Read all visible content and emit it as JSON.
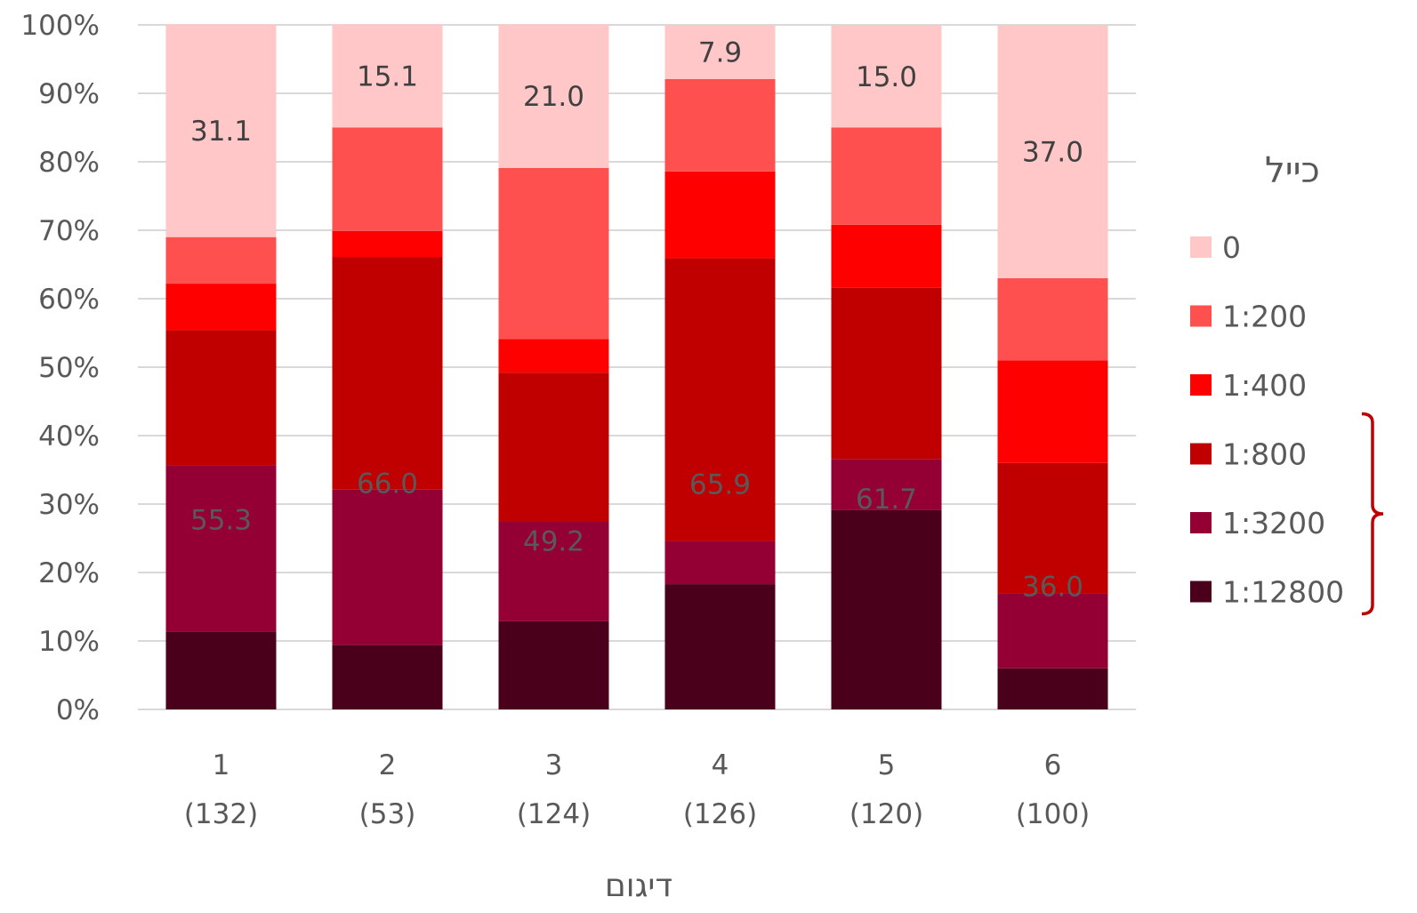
{
  "chart_data": {
    "type": "bar",
    "stacked": true,
    "normalized_percent": true,
    "categories": [
      "1",
      "2",
      "3",
      "4",
      "5",
      "6"
    ],
    "category_counts": [
      "(132)",
      "(53)",
      "(124)",
      "(126)",
      "(120)",
      "(100)"
    ],
    "series": [
      {
        "name": "1:12800",
        "color": "#4a001b",
        "values": [
          11.4,
          9.4,
          12.9,
          18.3,
          29.1,
          6.0
        ]
      },
      {
        "name": "1:3200",
        "color": "#940033",
        "values": [
          24.3,
          22.7,
          14.5,
          6.3,
          7.5,
          11.0
        ]
      },
      {
        "name": "1:800",
        "color": "#c00000",
        "values": [
          19.7,
          34.0,
          21.8,
          41.3,
          25.0,
          19.0
        ]
      },
      {
        "name": "1:400",
        "color": "#ff0000",
        "values": [
          6.8,
          3.8,
          4.9,
          12.7,
          9.2,
          15.0
        ]
      },
      {
        "name": "1:200",
        "color": "#ff5050",
        "values": [
          6.8,
          15.1,
          25.0,
          13.5,
          14.2,
          12.0
        ]
      },
      {
        "name": "0",
        "color": "#ffc7c7",
        "values": [
          31.1,
          15.1,
          21.0,
          7.9,
          15.0,
          37.0
        ]
      }
    ],
    "data_labels": {
      "top_group": [
        "31.1",
        "15.1",
        "21.0",
        "7.9",
        "15.0",
        "37.0"
      ],
      "bracket_group": [
        "55.3",
        "66.0",
        "49.2",
        "65.9",
        "61.7",
        "36.0"
      ]
    },
    "bracket_label_color": "#595959",
    "ylim": [
      0,
      100
    ],
    "y_ticks": [
      "0%",
      "10%",
      "20%",
      "30%",
      "40%",
      "50%",
      "60%",
      "70%",
      "80%",
      "90%",
      "100%"
    ],
    "xlabel": "דיגום",
    "ylabel": "",
    "legend_title": "כייל",
    "legend_order": [
      "0",
      "1:200",
      "1:400",
      "1:800",
      "1:3200",
      "1:12800"
    ],
    "legend_position": "right",
    "grid": true,
    "grid_color": "#d9d9d9",
    "bracket_color": "#c00000"
  }
}
